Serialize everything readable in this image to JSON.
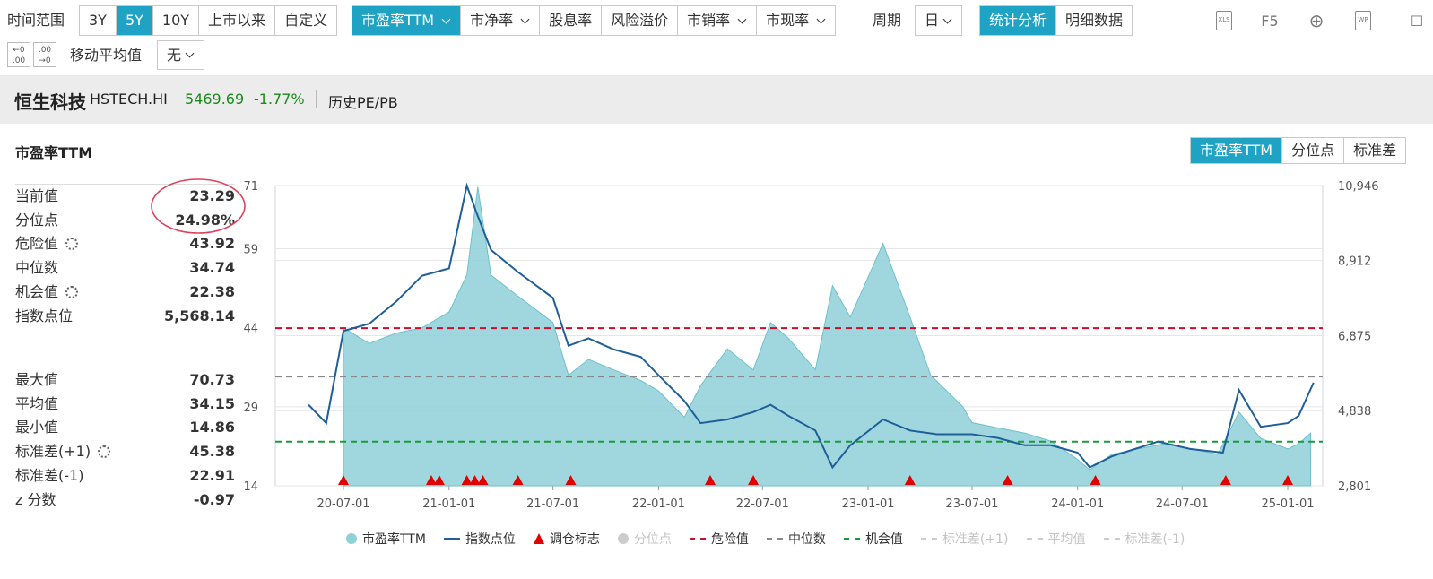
{
  "toolbar": {
    "range_label": "时间范围",
    "range_buttons": [
      "3Y",
      "5Y",
      "10Y",
      "上市以来",
      "自定义"
    ],
    "range_active": "5Y",
    "metric_buttons": [
      {
        "label": "市盈率TTM",
        "dropdown": true,
        "active": true
      },
      {
        "label": "市净率",
        "dropdown": true,
        "active": false
      },
      {
        "label": "股息率",
        "dropdown": false,
        "active": false
      },
      {
        "label": "风险溢价",
        "dropdown": false,
        "active": false
      },
      {
        "label": "市销率",
        "dropdown": true,
        "active": false
      },
      {
        "label": "市现率",
        "dropdown": true,
        "active": false
      }
    ],
    "period_label": "周期",
    "period_value": "日",
    "view_buttons": [
      "统计分析",
      "明细数据"
    ],
    "view_active": "统计分析",
    "tools": [
      "XLS",
      "F5",
      "⊕",
      "WP",
      "☐"
    ],
    "ma_label": "移动平均值",
    "ma_value": "无",
    "decimal_buttons": [
      "←0 .00",
      ".00 →0"
    ]
  },
  "index": {
    "name": "恒生科技",
    "code": "HSTECH.HI",
    "price": "5469.69",
    "change": "-1.77%",
    "tab": "历史PE/PB",
    "price_color": "#1a8a1a"
  },
  "panel": {
    "title": "市盈率TTM",
    "mode_buttons": [
      "市盈率TTM",
      "分位点",
      "标准差"
    ],
    "mode_active": "市盈率TTM"
  },
  "stats_top": [
    {
      "k": "当前值",
      "v": "23.29",
      "gear": false
    },
    {
      "k": "分位点",
      "v": "24.98%",
      "gear": false
    },
    {
      "k": "危险值",
      "v": "43.92",
      "gear": true
    },
    {
      "k": "中位数",
      "v": "34.74",
      "gear": false
    },
    {
      "k": "机会值",
      "v": "22.38",
      "gear": true
    },
    {
      "k": "指数点位",
      "v": "5,568.14",
      "gear": false
    }
  ],
  "stats_bottom": [
    {
      "k": "最大值",
      "v": "70.73",
      "gear": false
    },
    {
      "k": "平均值",
      "v": "34.15",
      "gear": false
    },
    {
      "k": "最小值",
      "v": "14.86",
      "gear": false
    },
    {
      "k": "标准差(+1)",
      "v": "45.38",
      "gear": true
    },
    {
      "k": "标准差(-1)",
      "v": "22.91",
      "gear": false
    },
    {
      "k": "z 分数",
      "v": "-0.97",
      "gear": false
    }
  ],
  "chart_data": {
    "type": "area",
    "y_left_ticks": [
      "71",
      "59",
      "44",
      "29",
      "14"
    ],
    "y_left_values": [
      71,
      59,
      44,
      29,
      14
    ],
    "y_right_ticks": [
      "10,946",
      "8,912",
      "6,875",
      "4,838",
      "2,801"
    ],
    "y_right_values": [
      10946,
      8912,
      6875,
      4838,
      2801
    ],
    "x_ticks": [
      "20-07-01",
      "21-01-01",
      "21-07-01",
      "22-01-01",
      "22-07-01",
      "23-01-01",
      "23-07-01",
      "24-01-01",
      "24-07-01",
      "25-01-01"
    ],
    "ref_lines": [
      {
        "name": "危险值",
        "value": 43.92,
        "color": "#c8102e"
      },
      {
        "name": "中位数",
        "value": 34.74,
        "color": "#888888"
      },
      {
        "name": "机会值",
        "value": 22.38,
        "color": "#1a9a3a"
      }
    ],
    "pe_series": {
      "name": "市盈率TTM",
      "color": "#8fd0d9",
      "dates": [
        "20-07-01",
        "20-08-15",
        "20-10-01",
        "20-11-15",
        "21-01-01",
        "21-02-01",
        "21-02-20",
        "21-03-15",
        "21-05-01",
        "21-07-01",
        "21-07-28",
        "21-09-01",
        "21-10-15",
        "21-12-01",
        "22-01-01",
        "22-02-15",
        "22-03-15",
        "22-05-01",
        "22-06-15",
        "22-07-15",
        "22-08-15",
        "22-10-01",
        "22-10-31",
        "22-12-01",
        "23-01-27",
        "23-03-15",
        "23-04-20",
        "23-06-15",
        "23-07-01",
        "23-08-15",
        "23-10-01",
        "23-11-15",
        "24-01-01",
        "24-01-22",
        "24-03-01",
        "24-04-15",
        "24-06-01",
        "24-07-15",
        "24-09-01",
        "24-09-20",
        "24-10-08",
        "24-11-15",
        "25-01-01",
        "25-01-20",
        "25-02-10"
      ],
      "values": [
        44,
        41,
        43,
        44,
        47,
        54,
        70.73,
        54,
        50,
        45,
        35,
        38,
        36,
        34,
        32,
        27,
        33,
        40,
        36,
        45,
        42,
        36,
        52,
        46,
        60,
        46,
        35,
        29,
        26,
        25,
        24,
        22.5,
        19,
        17,
        20,
        21,
        22,
        21,
        20,
        24,
        28,
        23,
        21,
        22,
        24
      ]
    },
    "index_series": {
      "name": "指数点位",
      "color": "#1f5f99",
      "dates": [
        "20-05-01",
        "20-06-01",
        "20-07-01",
        "20-08-15",
        "20-10-01",
        "20-11-15",
        "21-01-01",
        "21-02-01",
        "21-02-18",
        "21-03-15",
        "21-05-01",
        "21-07-01",
        "21-07-28",
        "21-09-01",
        "21-10-15",
        "21-12-01",
        "22-01-01",
        "22-02-15",
        "22-03-15",
        "22-05-01",
        "22-06-15",
        "22-07-15",
        "22-08-15",
        "22-10-01",
        "22-10-31",
        "22-12-01",
        "23-01-27",
        "23-03-15",
        "23-05-01",
        "23-07-01",
        "23-08-15",
        "23-10-01",
        "23-11-15",
        "24-01-01",
        "24-01-22",
        "24-03-01",
        "24-05-20",
        "24-07-15",
        "24-09-10",
        "24-10-08",
        "24-11-15",
        "25-01-01",
        "25-01-20",
        "25-02-15"
      ],
      "values": [
        5000,
        4500,
        7000,
        7200,
        7800,
        8500,
        8700,
        10946,
        10200,
        9200,
        8600,
        7900,
        6600,
        6800,
        6500,
        6300,
        5800,
        5100,
        4500,
        4600,
        4800,
        5000,
        4700,
        4300,
        3300,
        3900,
        4600,
        4300,
        4200,
        4200,
        4100,
        3900,
        3900,
        3700,
        3300,
        3600,
        4000,
        3800,
        3700,
        5400,
        4400,
        4500,
        4700,
        5600
      ]
    },
    "rebalance_marker_dates": [
      "20-07-01",
      "20-12-01",
      "20-12-15",
      "21-02-01",
      "21-02-15",
      "21-03-01",
      "21-05-01",
      "21-08-01",
      "22-04-01",
      "22-06-15",
      "23-03-15",
      "23-09-01",
      "24-02-01",
      "24-09-15",
      "25-01-01"
    ],
    "legend": [
      {
        "label": "市盈率TTM",
        "kind": "dot",
        "color": "#8fd0d9",
        "muted": false
      },
      {
        "label": "指数点位",
        "kind": "line",
        "color": "#1f5f99",
        "muted": false
      },
      {
        "label": "调仓标志",
        "kind": "triangle",
        "color": "#e00000",
        "muted": false
      },
      {
        "label": "分位点",
        "kind": "dot",
        "color": "#cccccc",
        "muted": true
      },
      {
        "label": "危险值",
        "kind": "dash",
        "color": "#c8102e",
        "muted": false
      },
      {
        "label": "中位数",
        "kind": "dash",
        "color": "#888888",
        "muted": false
      },
      {
        "label": "机会值",
        "kind": "dash",
        "color": "#1a9a3a",
        "muted": false
      },
      {
        "label": "标准差(+1)",
        "kind": "dash",
        "color": "#cccccc",
        "muted": true
      },
      {
        "label": "平均值",
        "kind": "dash",
        "color": "#cccccc",
        "muted": true
      },
      {
        "label": "标准差(-1)",
        "kind": "dash",
        "color": "#cccccc",
        "muted": true
      }
    ]
  }
}
